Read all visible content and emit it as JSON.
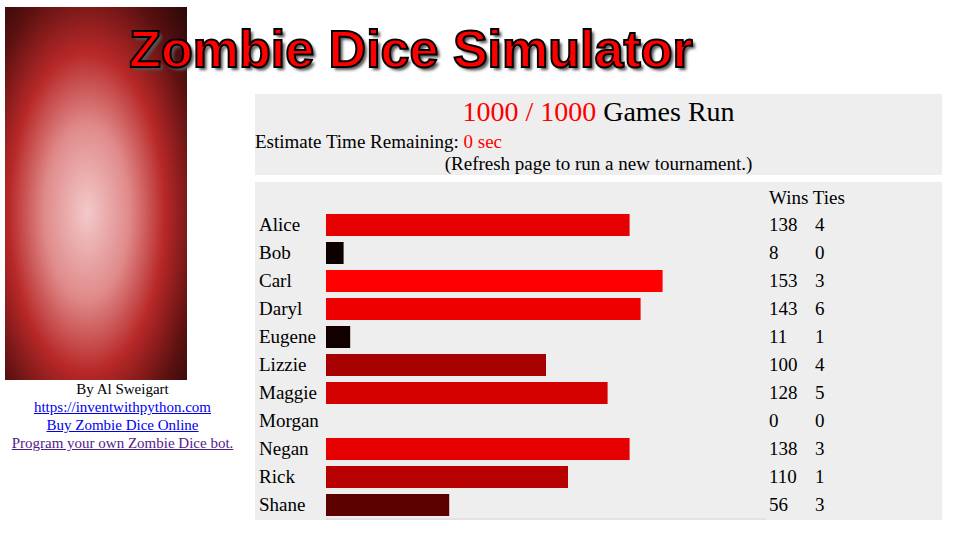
{
  "title": "Zombie Dice Simulator",
  "sidebar": {
    "byline": "By Al Sweigart",
    "links": [
      "https://inventwithpython.com",
      "Buy Zombie Dice Online",
      "Program your own Zombie Dice bot."
    ]
  },
  "status": {
    "games_done": 1000,
    "separator": "/",
    "games_total": 1000,
    "games_label": "Games Run",
    "time_label": "Estimate Time Remaining:",
    "time_value": 0,
    "time_unit": "sec",
    "note": "(Refresh page to run a new tournament.)"
  },
  "chart_data": {
    "type": "bar",
    "orientation": "horizontal",
    "columns": [
      "Wins",
      "Ties"
    ],
    "categories": [
      "Alice",
      "Bob",
      "Carl",
      "Daryl",
      "Eugene",
      "Lizzie",
      "Maggie",
      "Morgan",
      "Negan",
      "Rick",
      "Shane"
    ],
    "values": [
      138,
      8,
      153,
      143,
      11,
      100,
      128,
      0,
      138,
      110,
      56
    ],
    "ties": [
      4,
      0,
      3,
      6,
      1,
      4,
      5,
      0,
      3,
      1,
      3
    ],
    "colors": [
      "#e60000",
      "#0d0000",
      "#ff0000",
      "#ee0000",
      "#120000",
      "#a70000",
      "#d50000",
      "#000000",
      "#e60000",
      "#b70000",
      "#5d0000"
    ],
    "xlim": [
      0,
      200
    ],
    "xticks": [],
    "tick_labels": "y",
    "grid": false
  }
}
